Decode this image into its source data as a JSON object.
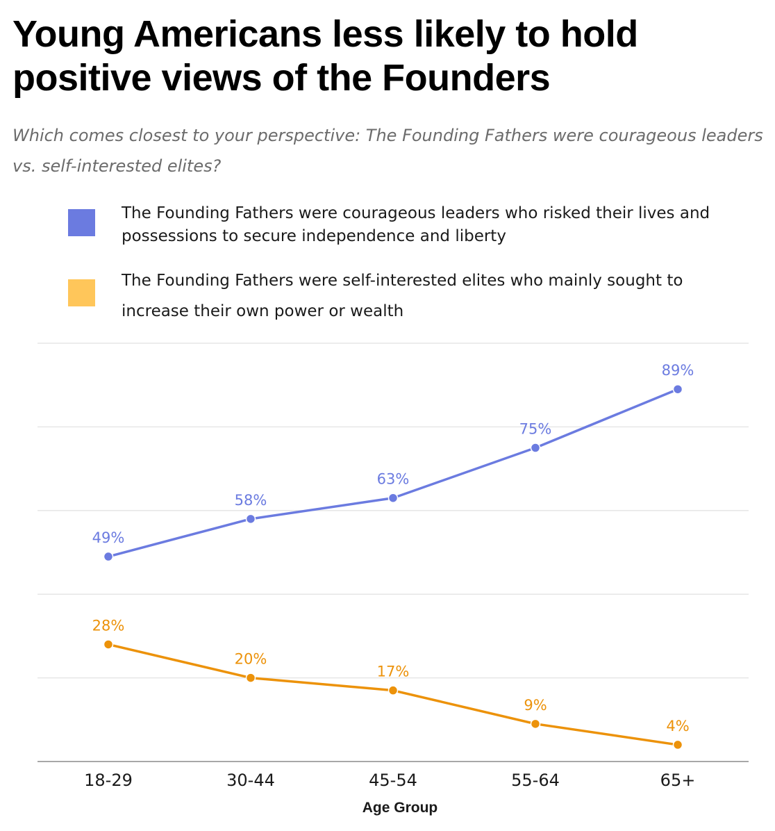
{
  "title": "Young Americans less likely to hold positive views of the Founders",
  "subtitle": "Which comes closest to your perspective: The Founding Fathers were courageous leaders vs. self-interested elites?",
  "legend": [
    {
      "label": "The Founding Fathers were courageous leaders who risked their lives and possessions to secure independence and liberty",
      "color": "#6b7be0"
    },
    {
      "label": "The Founding Fathers were self-interested elites who mainly sought to increase their own power or wealth",
      "color": "#ffc65a"
    }
  ],
  "chart_data": {
    "type": "line",
    "categories": [
      "18-29",
      "30-44",
      "45-54",
      "55-64",
      "65+"
    ],
    "xlabel": "Age Group",
    "ylabel": "",
    "ylim": [
      0,
      100
    ],
    "grid": true,
    "legend_position": "top",
    "series": [
      {
        "name": "The Founding Fathers were courageous leaders who risked their lives and possessions to secure independence and liberty",
        "values": [
          49,
          58,
          63,
          75,
          89
        ],
        "labels": [
          "49%",
          "58%",
          "63%",
          "75%",
          "89%"
        ],
        "color": "#6b7be0"
      },
      {
        "name": "The Founding Fathers were self-interested elites who mainly sought to increase their own power or wealth",
        "values": [
          28,
          20,
          17,
          9,
          4
        ],
        "labels": [
          "28%",
          "20%",
          "17%",
          "9%",
          "4%"
        ],
        "color": "#ec920a"
      }
    ]
  }
}
